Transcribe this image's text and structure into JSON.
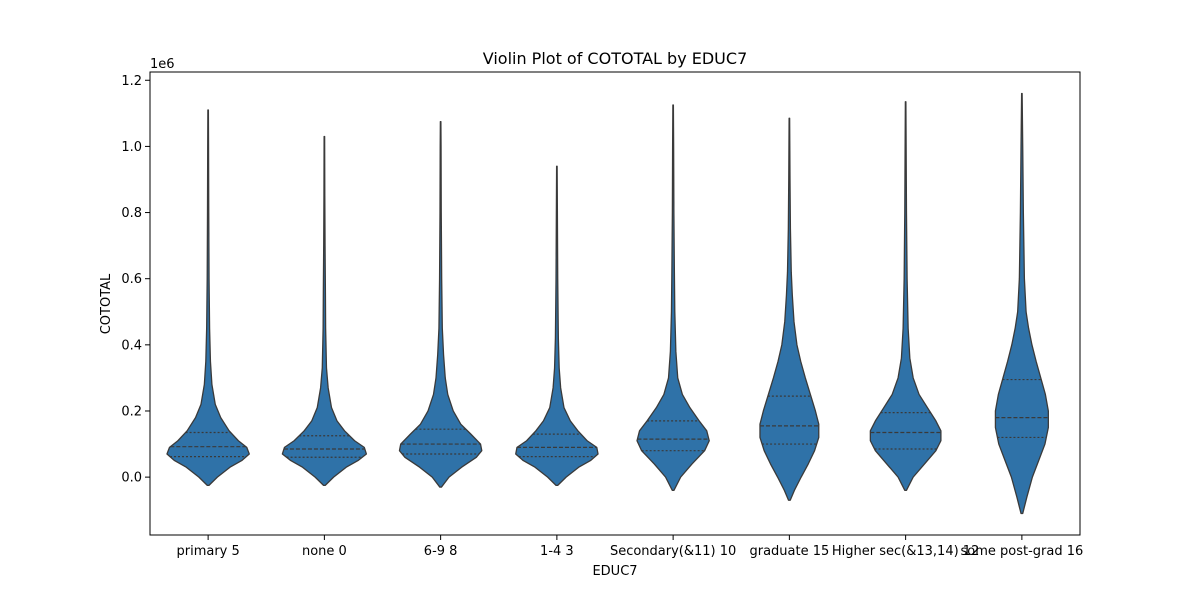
{
  "chart_data": {
    "type": "violin",
    "title": "Violin Plot of COTOTAL by EDUC7",
    "xlabel": "EDUC7",
    "ylabel": "COTOTAL",
    "y_offset_label": "1e6",
    "y_scale_factor": 1000000,
    "ylim": [
      -0.175,
      1.225
    ],
    "yticks": [
      0.0,
      0.2,
      0.4,
      0.6,
      0.8,
      1.0,
      1.2
    ],
    "ytick_labels": [
      "0.0",
      "0.2",
      "0.4",
      "0.6",
      "0.8",
      "1.0",
      "1.2"
    ],
    "violin_color": "#2f72a8",
    "edge_color": "#3a3a3a",
    "categories": [
      "primary 5",
      "none 0",
      "6-9 8",
      "1-4 3",
      "Secondary(&11) 10",
      "graduate 15",
      "Higher sec(&13,14) 12",
      "some post-grad 16"
    ],
    "violins": [
      {
        "category": "primary 5",
        "min": -0.025,
        "max": 1.11,
        "q1": 0.062,
        "median": 0.092,
        "q3": 0.135,
        "profile": [
          [
            -0.025,
            0.02
          ],
          [
            0.0,
            0.22
          ],
          [
            0.03,
            0.52
          ],
          [
            0.05,
            0.8
          ],
          [
            0.07,
            0.98
          ],
          [
            0.09,
            0.92
          ],
          [
            0.11,
            0.72
          ],
          [
            0.14,
            0.5
          ],
          [
            0.18,
            0.3
          ],
          [
            0.22,
            0.17
          ],
          [
            0.28,
            0.09
          ],
          [
            0.35,
            0.055
          ],
          [
            0.45,
            0.035
          ],
          [
            0.6,
            0.022
          ],
          [
            0.8,
            0.015
          ],
          [
            1.0,
            0.01
          ],
          [
            1.11,
            0.006
          ]
        ]
      },
      {
        "category": "none 0",
        "min": -0.025,
        "max": 1.03,
        "q1": 0.06,
        "median": 0.085,
        "q3": 0.125,
        "profile": [
          [
            -0.025,
            0.02
          ],
          [
            0.0,
            0.22
          ],
          [
            0.03,
            0.52
          ],
          [
            0.05,
            0.8
          ],
          [
            0.07,
            1.0
          ],
          [
            0.09,
            0.95
          ],
          [
            0.11,
            0.72
          ],
          [
            0.14,
            0.48
          ],
          [
            0.17,
            0.3
          ],
          [
            0.21,
            0.17
          ],
          [
            0.27,
            0.09
          ],
          [
            0.33,
            0.05
          ],
          [
            0.45,
            0.03
          ],
          [
            0.55,
            0.025
          ],
          [
            0.7,
            0.016
          ],
          [
            0.85,
            0.01
          ],
          [
            1.03,
            0.006
          ]
        ]
      },
      {
        "category": "6-9 8",
        "min": -0.03,
        "max": 1.075,
        "q1": 0.07,
        "median": 0.1,
        "q3": 0.145,
        "profile": [
          [
            -0.03,
            0.02
          ],
          [
            0.0,
            0.2
          ],
          [
            0.03,
            0.5
          ],
          [
            0.06,
            0.85
          ],
          [
            0.08,
            0.98
          ],
          [
            0.1,
            0.95
          ],
          [
            0.13,
            0.72
          ],
          [
            0.16,
            0.48
          ],
          [
            0.2,
            0.3
          ],
          [
            0.25,
            0.17
          ],
          [
            0.3,
            0.11
          ],
          [
            0.37,
            0.07
          ],
          [
            0.45,
            0.04
          ],
          [
            0.6,
            0.025
          ],
          [
            0.8,
            0.015
          ],
          [
            1.0,
            0.01
          ],
          [
            1.075,
            0.006
          ]
        ]
      },
      {
        "category": "1-4 3",
        "min": -0.025,
        "max": 0.94,
        "q1": 0.062,
        "median": 0.09,
        "q3": 0.13,
        "profile": [
          [
            -0.025,
            0.02
          ],
          [
            0.0,
            0.22
          ],
          [
            0.03,
            0.52
          ],
          [
            0.05,
            0.8
          ],
          [
            0.07,
            0.98
          ],
          [
            0.09,
            0.95
          ],
          [
            0.11,
            0.72
          ],
          [
            0.14,
            0.5
          ],
          [
            0.17,
            0.32
          ],
          [
            0.21,
            0.17
          ],
          [
            0.27,
            0.09
          ],
          [
            0.33,
            0.055
          ],
          [
            0.42,
            0.035
          ],
          [
            0.48,
            0.03
          ],
          [
            0.6,
            0.02
          ],
          [
            0.8,
            0.012
          ],
          [
            0.94,
            0.006
          ]
        ]
      },
      {
        "category": "Secondary(&11) 10",
        "min": -0.04,
        "max": 1.125,
        "q1": 0.08,
        "median": 0.115,
        "q3": 0.17,
        "profile": [
          [
            -0.04,
            0.02
          ],
          [
            0.0,
            0.18
          ],
          [
            0.04,
            0.45
          ],
          [
            0.08,
            0.75
          ],
          [
            0.11,
            0.86
          ],
          [
            0.14,
            0.8
          ],
          [
            0.17,
            0.62
          ],
          [
            0.21,
            0.4
          ],
          [
            0.25,
            0.22
          ],
          [
            0.3,
            0.11
          ],
          [
            0.38,
            0.065
          ],
          [
            0.5,
            0.04
          ],
          [
            0.62,
            0.03
          ],
          [
            0.8,
            0.018
          ],
          [
            1.0,
            0.012
          ],
          [
            1.125,
            0.006
          ]
        ]
      },
      {
        "category": "graduate 15",
        "min": -0.07,
        "max": 1.085,
        "q1": 0.1,
        "median": 0.155,
        "q3": 0.245,
        "profile": [
          [
            -0.07,
            0.02
          ],
          [
            -0.04,
            0.12
          ],
          [
            0.0,
            0.28
          ],
          [
            0.04,
            0.45
          ],
          [
            0.08,
            0.6
          ],
          [
            0.12,
            0.7
          ],
          [
            0.16,
            0.7
          ],
          [
            0.2,
            0.62
          ],
          [
            0.25,
            0.5
          ],
          [
            0.3,
            0.38
          ],
          [
            0.35,
            0.27
          ],
          [
            0.4,
            0.18
          ],
          [
            0.47,
            0.11
          ],
          [
            0.55,
            0.07
          ],
          [
            0.62,
            0.045
          ],
          [
            0.75,
            0.025
          ],
          [
            0.9,
            0.015
          ],
          [
            1.085,
            0.006
          ]
        ]
      },
      {
        "category": "Higher sec(&13,14) 12",
        "min": -0.04,
        "max": 1.135,
        "q1": 0.085,
        "median": 0.135,
        "q3": 0.195,
        "profile": [
          [
            -0.04,
            0.02
          ],
          [
            0.0,
            0.18
          ],
          [
            0.04,
            0.45
          ],
          [
            0.08,
            0.72
          ],
          [
            0.11,
            0.84
          ],
          [
            0.14,
            0.84
          ],
          [
            0.17,
            0.72
          ],
          [
            0.21,
            0.52
          ],
          [
            0.25,
            0.32
          ],
          [
            0.3,
            0.18
          ],
          [
            0.36,
            0.1
          ],
          [
            0.45,
            0.06
          ],
          [
            0.6,
            0.035
          ],
          [
            0.8,
            0.02
          ],
          [
            1.0,
            0.012
          ],
          [
            1.135,
            0.006
          ]
        ]
      },
      {
        "category": "some post-grad 16",
        "min": -0.11,
        "max": 1.16,
        "q1": 0.12,
        "median": 0.18,
        "q3": 0.295,
        "profile": [
          [
            -0.11,
            0.02
          ],
          [
            -0.06,
            0.12
          ],
          [
            0.0,
            0.25
          ],
          [
            0.05,
            0.4
          ],
          [
            0.1,
            0.55
          ],
          [
            0.15,
            0.63
          ],
          [
            0.2,
            0.63
          ],
          [
            0.25,
            0.56
          ],
          [
            0.3,
            0.45
          ],
          [
            0.35,
            0.34
          ],
          [
            0.4,
            0.24
          ],
          [
            0.45,
            0.16
          ],
          [
            0.5,
            0.1
          ],
          [
            0.6,
            0.06
          ],
          [
            0.8,
            0.035
          ],
          [
            1.0,
            0.02
          ],
          [
            1.16,
            0.006
          ]
        ]
      }
    ]
  }
}
